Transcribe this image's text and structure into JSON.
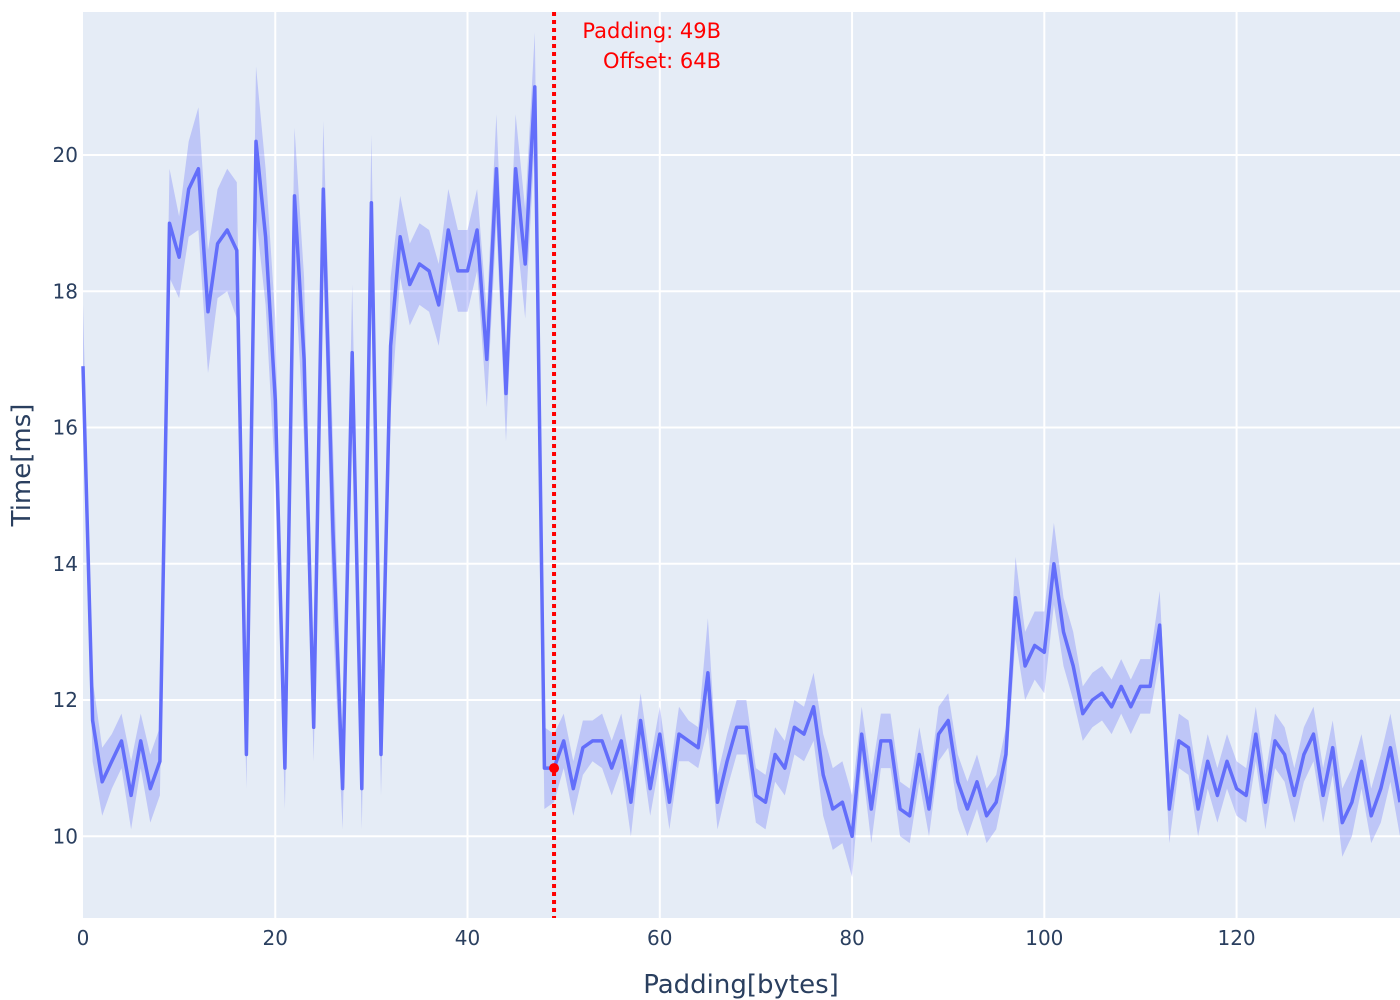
{
  "chart_data": {
    "type": "line",
    "title": "",
    "xlabel": "Padding[bytes]",
    "ylabel": "Time[ms]",
    "xlim": [
      0,
      137
    ],
    "ylim": [
      8.8,
      22.1
    ],
    "grid": true,
    "x_ticks": [
      0,
      20,
      40,
      60,
      80,
      100,
      120
    ],
    "y_ticks": [
      10,
      12,
      14,
      16,
      18,
      20
    ],
    "x_tick_labels": [
      "0",
      "20",
      "40",
      "60",
      "80",
      "100",
      "120"
    ],
    "y_tick_labels": [
      "10",
      "12",
      "14",
      "16",
      "18",
      "20"
    ],
    "colors": {
      "plot_bg": "#e5ecf6",
      "grid": "#ffffff",
      "line": "#636efa",
      "band": "#636efa",
      "marker": "#ff0000",
      "annotation": "#ff0000"
    },
    "series": [
      {
        "x": [
          0,
          1,
          2,
          3,
          4,
          5,
          6,
          7,
          8,
          9,
          10,
          11,
          12,
          13,
          14,
          15,
          16,
          17,
          18,
          19,
          20,
          21,
          22,
          23,
          24,
          25,
          26,
          27,
          28,
          29,
          30,
          31,
          32,
          33,
          34,
          35,
          36,
          37,
          38,
          39,
          40,
          41,
          42,
          43,
          44,
          45,
          46,
          47,
          48,
          49,
          50,
          51,
          52,
          53,
          54,
          55,
          56,
          57,
          58,
          59,
          60,
          61,
          62,
          63,
          64,
          65,
          66,
          67,
          68,
          69,
          70,
          71,
          72,
          73,
          74,
          75,
          76,
          77,
          78,
          79,
          80,
          81,
          82,
          83,
          84,
          85,
          86,
          87,
          88,
          89,
          90,
          91,
          92,
          93,
          94,
          95,
          96,
          97,
          98,
          99,
          100,
          101,
          102,
          103,
          104,
          105,
          106,
          107,
          108,
          109,
          110,
          111,
          112,
          113,
          114,
          115,
          116,
          117,
          118,
          119,
          120,
          121,
          122,
          123,
          124,
          125,
          126,
          127,
          128,
          129,
          130,
          131,
          132,
          133,
          134,
          135,
          136,
          137
        ],
        "y": [
          16.9,
          11.7,
          10.8,
          11.1,
          11.4,
          10.6,
          11.4,
          10.7,
          11.1,
          19.0,
          18.5,
          19.5,
          19.8,
          17.7,
          18.7,
          18.9,
          18.6,
          11.2,
          20.2,
          18.8,
          16.4,
          11.0,
          19.4,
          17.0,
          11.6,
          19.5,
          14.5,
          10.7,
          17.1,
          10.7,
          19.3,
          11.2,
          17.2,
          18.8,
          18.1,
          18.4,
          18.3,
          17.8,
          18.9,
          18.3,
          18.3,
          18.9,
          17.0,
          19.8,
          16.5,
          19.8,
          18.4,
          21.0,
          11.0,
          11.0,
          11.4,
          10.7,
          11.3,
          11.4,
          11.4,
          11.0,
          11.4,
          10.5,
          11.7,
          10.7,
          11.5,
          10.5,
          11.5,
          11.4,
          11.3,
          12.4,
          10.5,
          11.1,
          11.6,
          11.6,
          10.6,
          10.5,
          11.2,
          11.0,
          11.6,
          11.5,
          11.9,
          10.9,
          10.4,
          10.5,
          10.0,
          11.5,
          10.4,
          11.4,
          11.4,
          10.4,
          10.3,
          11.2,
          10.4,
          11.5,
          11.7,
          10.8,
          10.4,
          10.8,
          10.3,
          10.5,
          11.2,
          13.5,
          12.5,
          12.8,
          12.7,
          14.0,
          13.0,
          12.5,
          11.8,
          12.0,
          12.1,
          11.9,
          12.2,
          11.9,
          12.2,
          12.2,
          13.1,
          10.4,
          11.4,
          11.3,
          10.4,
          11.1,
          10.6,
          11.1,
          10.7,
          10.6,
          11.5,
          10.5,
          11.4,
          11.2,
          10.6,
          11.2,
          11.5,
          10.6,
          11.3,
          10.2,
          10.5,
          11.1,
          10.3,
          10.7,
          11.3,
          10.5
        ],
        "band_halfwidth": [
          0.9,
          0.6,
          0.5,
          0.4,
          0.4,
          0.5,
          0.4,
          0.5,
          0.5,
          0.8,
          0.6,
          0.7,
          0.9,
          0.9,
          0.8,
          0.9,
          1.0,
          0.5,
          1.1,
          1.0,
          1.2,
          0.6,
          1.0,
          1.2,
          0.5,
          1.0,
          1.3,
          0.6,
          1.0,
          0.6,
          1.0,
          0.6,
          1.0,
          0.6,
          0.6,
          0.6,
          0.6,
          0.6,
          0.6,
          0.6,
          0.6,
          0.6,
          0.7,
          0.8,
          0.7,
          0.8,
          0.8,
          0.8,
          0.6,
          0.5,
          0.4,
          0.4,
          0.4,
          0.3,
          0.4,
          0.4,
          0.4,
          0.5,
          0.4,
          0.4,
          0.4,
          0.4,
          0.4,
          0.3,
          0.3,
          0.8,
          0.4,
          0.4,
          0.4,
          0.4,
          0.4,
          0.4,
          0.4,
          0.4,
          0.4,
          0.4,
          0.5,
          0.6,
          0.6,
          0.6,
          0.6,
          0.4,
          0.5,
          0.4,
          0.4,
          0.4,
          0.4,
          0.4,
          0.4,
          0.4,
          0.4,
          0.4,
          0.4,
          0.4,
          0.4,
          0.4,
          0.4,
          0.6,
          0.5,
          0.5,
          0.6,
          0.6,
          0.5,
          0.5,
          0.4,
          0.4,
          0.4,
          0.4,
          0.4,
          0.4,
          0.4,
          0.4,
          0.5,
          0.5,
          0.4,
          0.4,
          0.4,
          0.4,
          0.4,
          0.4,
          0.4,
          0.4,
          0.4,
          0.4,
          0.4,
          0.4,
          0.4,
          0.4,
          0.4,
          0.4,
          0.4,
          0.5,
          0.5,
          0.4,
          0.4,
          0.5,
          0.5,
          0.5
        ]
      }
    ],
    "vline": {
      "x": 49,
      "style": "dotted"
    },
    "marker": {
      "x": 49,
      "y": 11.0
    },
    "annotation": {
      "lines": [
        "Padding: 49B",
        "Offset: 64B"
      ]
    }
  }
}
